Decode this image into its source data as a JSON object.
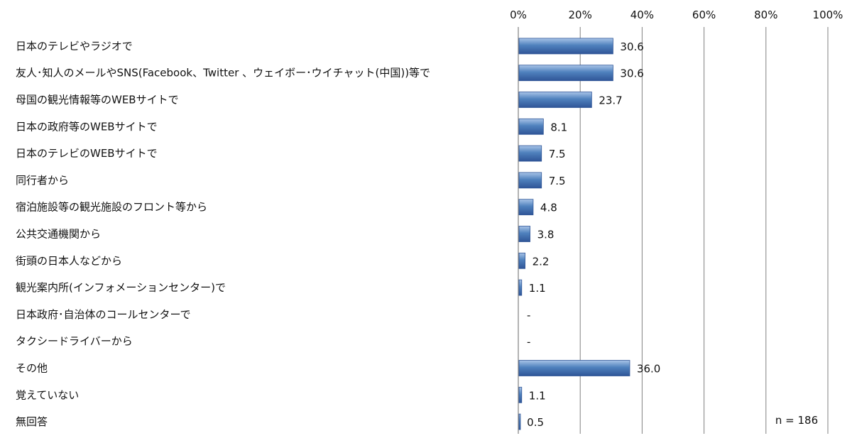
{
  "chart_data": {
    "type": "bar",
    "orientation": "horizontal",
    "categories": [
      "日本のテレビやラジオで",
      "友人･知人のメールやSNS(Facebook、Twitter 、ウェイボー･ウイチャット(中国))等で",
      "母国の観光情報等のWEBサイトで",
      "日本の政府等のWEBサイトで",
      "日本のテレビのWEBサイトで",
      "同行者から",
      "宿泊施設等の観光施設のフロント等から",
      "公共交通機関から",
      "街頭の日本人などから",
      "観光案内所(インフォメーションセンター)で",
      "日本政府･自治体のコールセンターで",
      "タクシードライバーから",
      "その他",
      "覚えていない",
      "無回答"
    ],
    "values": [
      30.6,
      30.6,
      23.7,
      8.1,
      7.5,
      7.5,
      4.8,
      3.8,
      2.2,
      1.1,
      null,
      null,
      36.0,
      1.1,
      0.5
    ],
    "data_labels": [
      "30.6",
      "30.6",
      "23.7",
      "8.1",
      "7.5",
      "7.5",
      "4.8",
      "3.8",
      "2.2",
      "1.1",
      "-",
      "-",
      "36.0",
      "1.1",
      "0.5"
    ],
    "x_ticks": [
      "0%",
      "20%",
      "40%",
      "60%",
      "80%",
      "100%"
    ],
    "xlim": [
      0,
      100
    ],
    "x_axis_position": "top",
    "grid": true,
    "bar_color": "#4F81BD",
    "bar_dark": "#2F5597",
    "bar_light": "#A9C4E8",
    "gridline_color": "#808080",
    "note": "n = 186"
  }
}
